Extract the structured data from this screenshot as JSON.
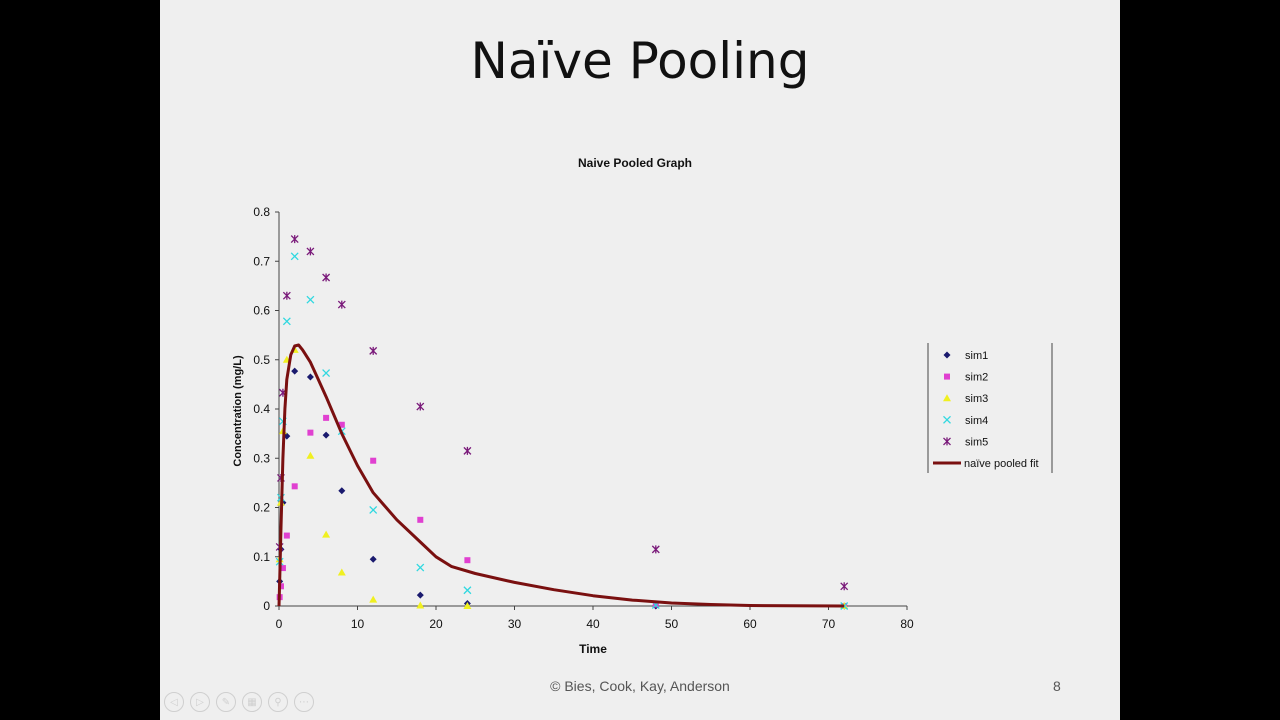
{
  "slide": {
    "title": "Naïve Pooling",
    "footer": "© Bies, Cook, Kay, Anderson",
    "page_number": "8"
  },
  "controls": [
    {
      "name": "previous-slide-icon",
      "glyph": "◁"
    },
    {
      "name": "next-slide-icon",
      "glyph": "▷"
    },
    {
      "name": "pen-icon",
      "glyph": "✎"
    },
    {
      "name": "slides-grid-icon",
      "glyph": "▦"
    },
    {
      "name": "zoom-icon",
      "glyph": "⚲"
    },
    {
      "name": "more-options-icon",
      "glyph": "⋯"
    }
  ],
  "chart_data": {
    "type": "scatter",
    "title": "Naive Pooled Graph",
    "xlabel": "Time",
    "ylabel": "Concentration (mg/L)",
    "xlim": [
      0,
      80
    ],
    "ylim": [
      0,
      0.8
    ],
    "xticks": [
      0,
      10,
      20,
      30,
      40,
      50,
      60,
      70,
      80
    ],
    "yticks": [
      0,
      0.1,
      0.2,
      0.3,
      0.4,
      0.5,
      0.6,
      0.7,
      0.8
    ],
    "grid": false,
    "legend_position": "right",
    "series": [
      {
        "name": "sim1",
        "marker": "diamond",
        "color": "#1a1a6e",
        "points": [
          [
            0.083,
            0.05
          ],
          [
            0.25,
            0.115
          ],
          [
            0.5,
            0.21
          ],
          [
            1,
            0.345
          ],
          [
            2,
            0.477
          ],
          [
            4,
            0.465
          ],
          [
            6,
            0.347
          ],
          [
            8,
            0.234
          ],
          [
            12,
            0.095
          ],
          [
            18,
            0.022
          ],
          [
            24,
            0.005
          ],
          [
            48,
            0.0
          ],
          [
            72,
            0.0
          ]
        ]
      },
      {
        "name": "sim2",
        "marker": "square",
        "color": "#e040d0",
        "points": [
          [
            0.083,
            0.018
          ],
          [
            0.25,
            0.04
          ],
          [
            0.5,
            0.077
          ],
          [
            1,
            0.143
          ],
          [
            2,
            0.243
          ],
          [
            4,
            0.352
          ],
          [
            6,
            0.382
          ],
          [
            8,
            0.368
          ],
          [
            12,
            0.295
          ],
          [
            18,
            0.175
          ],
          [
            24,
            0.093
          ],
          [
            48,
            0.003
          ],
          [
            72,
            0.0
          ]
        ]
      },
      {
        "name": "sim3",
        "marker": "triangle",
        "color": "#f0f020",
        "points": [
          [
            0.083,
            0.095
          ],
          [
            0.25,
            0.21
          ],
          [
            0.5,
            0.355
          ],
          [
            1,
            0.5
          ],
          [
            2,
            0.52
          ],
          [
            4,
            0.305
          ],
          [
            6,
            0.145
          ],
          [
            8,
            0.068
          ],
          [
            12,
            0.013
          ],
          [
            18,
            0.001
          ],
          [
            24,
            0.0
          ],
          [
            72,
            0.0
          ]
        ]
      },
      {
        "name": "sim4",
        "marker": "x",
        "color": "#30d8e0",
        "points": [
          [
            0.083,
            0.09
          ],
          [
            0.25,
            0.22
          ],
          [
            0.5,
            0.375
          ],
          [
            1,
            0.578
          ],
          [
            2,
            0.71
          ],
          [
            4,
            0.622
          ],
          [
            6,
            0.473
          ],
          [
            8,
            0.355
          ],
          [
            12,
            0.195
          ],
          [
            18,
            0.078
          ],
          [
            24,
            0.032
          ],
          [
            48,
            0.002
          ],
          [
            72,
            0.0
          ]
        ]
      },
      {
        "name": "sim5",
        "marker": "star",
        "color": "#7a1a7a",
        "points": [
          [
            0.083,
            0.12
          ],
          [
            0.25,
            0.26
          ],
          [
            0.5,
            0.433
          ],
          [
            1,
            0.63
          ],
          [
            2,
            0.745
          ],
          [
            4,
            0.72
          ],
          [
            6,
            0.667
          ],
          [
            8,
            0.612
          ],
          [
            12,
            0.518
          ],
          [
            18,
            0.405
          ],
          [
            24,
            0.315
          ],
          [
            48,
            0.115
          ],
          [
            72,
            0.04
          ]
        ]
      },
      {
        "name": "naïve pooled fit",
        "marker": "line",
        "color": "#7a1010",
        "points": [
          [
            0,
            0
          ],
          [
            0.1,
            0.06
          ],
          [
            0.25,
            0.16
          ],
          [
            0.5,
            0.3
          ],
          [
            0.75,
            0.4
          ],
          [
            1,
            0.46
          ],
          [
            1.5,
            0.51
          ],
          [
            2,
            0.528
          ],
          [
            2.5,
            0.53
          ],
          [
            3,
            0.52
          ],
          [
            4,
            0.495
          ],
          [
            5,
            0.46
          ],
          [
            6,
            0.425
          ],
          [
            8,
            0.35
          ],
          [
            10,
            0.285
          ],
          [
            12,
            0.23
          ],
          [
            15,
            0.175
          ],
          [
            18,
            0.13
          ],
          [
            20,
            0.1
          ],
          [
            22,
            0.08
          ],
          [
            25,
            0.066
          ],
          [
            30,
            0.048
          ],
          [
            35,
            0.033
          ],
          [
            40,
            0.021
          ],
          [
            45,
            0.012
          ],
          [
            50,
            0.006
          ],
          [
            55,
            0.003
          ],
          [
            60,
            0.001
          ],
          [
            72,
            0.0
          ]
        ]
      }
    ]
  }
}
